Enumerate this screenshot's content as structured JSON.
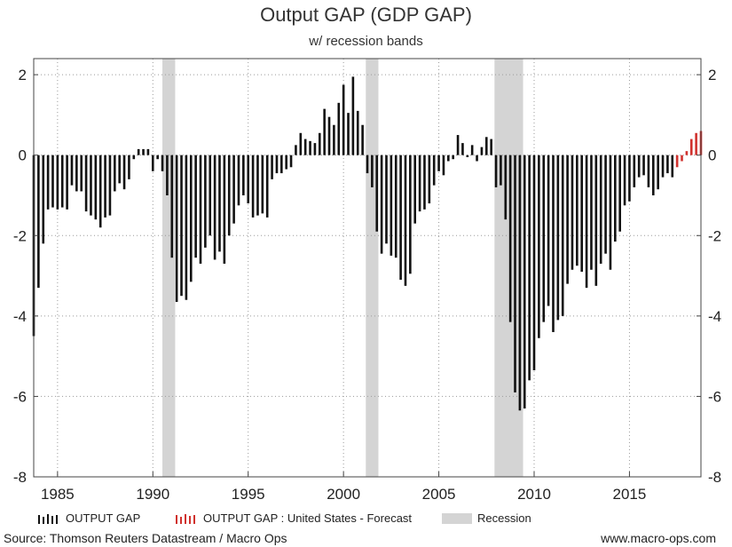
{
  "title": "Output GAP (GDP GAP)",
  "subtitle": "w/ recession bands",
  "legend": {
    "output_gap": "OUTPUT GAP",
    "forecast": "OUTPUT GAP : United States - Forecast",
    "recession": "Recession"
  },
  "source": "Source: Thomson Reuters Datastream / Macro Ops",
  "website": "www.macro-ops.com",
  "colors": {
    "actual": "#111111",
    "forecast": "#d0312d",
    "recession": "#d4d4d4",
    "grid": "#9a9a9a"
  },
  "chart_data": {
    "type": "bar",
    "xlim": [
      1983.75,
      2018.75
    ],
    "ylim": [
      -8,
      2.4
    ],
    "x_ticks": [
      1985,
      1990,
      1995,
      2000,
      2005,
      2010,
      2015
    ],
    "y_ticks": [
      -8,
      -6,
      -4,
      -2,
      0,
      2
    ],
    "grid": true,
    "recessions": [
      [
        1990.5,
        1991.17
      ],
      [
        2001.17,
        2001.83
      ],
      [
        2007.92,
        2009.42
      ]
    ],
    "series": [
      {
        "name": "OUTPUT GAP",
        "start": 1983.75,
        "step": 0.25,
        "values": [
          -4.5,
          -3.3,
          -2.2,
          -1.35,
          -1.3,
          -1.35,
          -1.3,
          -1.35,
          -0.75,
          -0.9,
          -0.9,
          -1.4,
          -1.5,
          -1.6,
          -1.8,
          -1.55,
          -1.5,
          -0.9,
          -0.7,
          -0.85,
          -0.6,
          -0.1,
          0.15,
          0.15,
          0.15,
          -0.4,
          -0.1,
          -0.4,
          -1.0,
          -2.55,
          -3.65,
          -3.5,
          -3.6,
          -3.15,
          -2.55,
          -2.7,
          -2.3,
          -2.0,
          -2.6,
          -2.4,
          -2.7,
          -2.0,
          -1.7,
          -1.25,
          -1.0,
          -1.2,
          -1.55,
          -1.5,
          -1.45,
          -1.55,
          -0.6,
          -0.45,
          -0.45,
          -0.35,
          -0.3,
          0.25,
          0.55,
          0.4,
          0.35,
          0.3,
          0.55,
          1.15,
          0.95,
          0.75,
          1.3,
          1.75,
          1.05,
          1.95,
          1.1,
          0.75,
          -0.45,
          -0.8,
          -1.9,
          -2.45,
          -2.2,
          -2.5,
          -2.55,
          -3.1,
          -3.25,
          -2.95,
          -1.7,
          -1.4,
          -1.35,
          -1.2,
          -0.75,
          -0.4,
          -0.5,
          -0.15,
          -0.1,
          0.5,
          0.3,
          -0.05,
          0.25,
          -0.15,
          0.2,
          0.45,
          0.4,
          -0.8,
          -0.75,
          -1.6,
          -4.15,
          -5.9,
          -6.35,
          -6.3,
          -5.6,
          -5.35,
          -4.55,
          -4.15,
          -3.75,
          -4.4,
          -4.1,
          -4.0,
          -3.2,
          -2.85,
          -2.75,
          -2.9,
          -3.3,
          -2.85,
          -3.25,
          -2.7,
          -2.45,
          -2.85,
          -2.15,
          -1.9,
          -1.25,
          -1.15,
          -0.8,
          -0.55,
          -0.5,
          -0.8,
          -1.0,
          -0.85,
          -0.55,
          -0.45,
          -0.55
        ]
      },
      {
        "name": "OUTPUT GAP : United States - Forecast",
        "start": 2017.5,
        "step": 0.25,
        "values": [
          -0.3,
          -0.15,
          0.1,
          0.4,
          0.55,
          0.6
        ]
      }
    ]
  }
}
